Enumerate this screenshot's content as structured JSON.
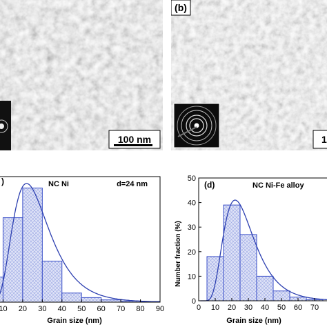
{
  "panels": {
    "b_label": "(b)",
    "d_label": "(d)",
    "c_label_fragment": ")"
  },
  "scalebars": {
    "a": "100 nm",
    "b_fragment": "1"
  },
  "chart_data": [
    {
      "type": "bar",
      "panel": "c",
      "title": "NC Ni",
      "annotation": "d=24 nm",
      "xlabel": "Grain size (nm)",
      "ylabel": "",
      "xlim": [
        0,
        90
      ],
      "ylim": [
        0,
        55
      ],
      "x_ticks": [
        "10",
        "20",
        "30",
        "40",
        "50",
        "60",
        "70",
        "80",
        "90"
      ],
      "bins": [
        [
          0,
          10
        ],
        [
          10,
          20
        ],
        [
          20,
          30
        ],
        [
          30,
          40
        ],
        [
          40,
          50
        ],
        [
          50,
          60
        ],
        [
          60,
          70
        ],
        [
          70,
          80
        ],
        [
          80,
          90
        ]
      ],
      "values": [
        11,
        37,
        50,
        18,
        4,
        2,
        1,
        0.5,
        0.3
      ],
      "fit_curve": "lognormal",
      "fit_peak": [
        22,
        52
      ],
      "colors": {
        "bar": "#3a4fc8",
        "fill": "#dfe3f7",
        "curve": "#2c3fb0"
      }
    },
    {
      "type": "bar",
      "panel": "d",
      "title": "NC Ni-Fe alloy",
      "xlabel": "Grain size (nm)",
      "ylabel": "Number fraction (%)",
      "xlim": [
        0,
        80
      ],
      "ylim": [
        0,
        50
      ],
      "y_ticks": [
        "0",
        "10",
        "20",
        "30",
        "40",
        "50"
      ],
      "x_ticks": [
        "0",
        "10",
        "20",
        "30",
        "40",
        "50",
        "60",
        "70"
      ],
      "bins": [
        [
          5,
          15
        ],
        [
          15,
          25
        ],
        [
          25,
          35
        ],
        [
          35,
          45
        ],
        [
          45,
          55
        ],
        [
          55,
          65
        ],
        [
          65,
          75
        ]
      ],
      "values": [
        18,
        39,
        27,
        10,
        4,
        1.5,
        0.5
      ],
      "fit_curve": "lognormal",
      "fit_peak": [
        22,
        41
      ],
      "colors": {
        "bar": "#3a4fc8",
        "fill": "#dfe3f7",
        "curve": "#2c3fb0"
      }
    }
  ]
}
